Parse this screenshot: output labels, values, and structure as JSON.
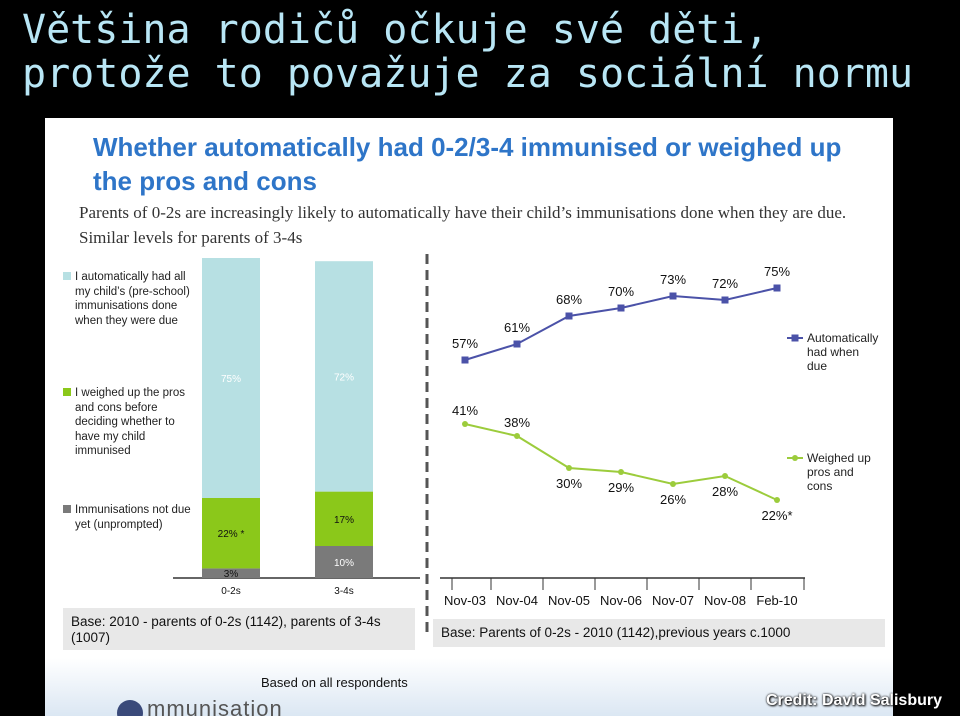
{
  "slide_title": {
    "line1": "Většina rodičů očkuje své děti,",
    "line2": "protože to považuje za sociální normu"
  },
  "credit": "Credit: David Salisbury",
  "chart_title": "Whether automatically had 0-2/3-4 immunised or weighed up the pros and cons",
  "chart_subtitle": "Parents of 0-2s are increasingly likely to automatically have their child’s immunisations done when they are due. Similar levels for parents of 3-4s",
  "legend_left": [
    {
      "label": "I automatically had all my child’s (pre-school) immunisations done when they were due",
      "color": "#b7e0e3"
    },
    {
      "label": "I weighed up the pros and cons before deciding whether to have my child immunised",
      "color": "#8bc81a"
    },
    {
      "label": "Immunisations not due yet (unprompted)",
      "color": "#7a7a7a"
    }
  ],
  "base_left": "Base: 2010 - parents of 0-2s (1142), parents of 3-4s (1007)",
  "base_right": "Base: Parents of 0-2s - 2010 (1142),previous years c.1000",
  "based_on_all": "Based on all respondents",
  "logo_text": "mmunisation",
  "chart_data": [
    {
      "type": "bar",
      "stacked": true,
      "categories": [
        "0-2s",
        "3-4s"
      ],
      "series": [
        {
          "name": "I automatically had all my child’s (pre-school) immunisations done when they were due",
          "values": [
            75,
            72
          ],
          "labels": [
            "75%",
            "72%"
          ],
          "color": "#b7e0e3"
        },
        {
          "name": "I weighed up the pros and cons before deciding whether to have my child immunised",
          "values": [
            22,
            17
          ],
          "labels": [
            "22% *",
            "17%"
          ],
          "color": "#8bc81a"
        },
        {
          "name": "Immunisations not due yet (unprompted)",
          "values": [
            3,
            10
          ],
          "labels": [
            "3%",
            "10%"
          ],
          "color": "#7a7a7a"
        }
      ],
      "ylim": [
        0,
        100
      ]
    },
    {
      "type": "line",
      "categories": [
        "Nov-03",
        "Nov-04",
        "Nov-05",
        "Nov-06",
        "Nov-07",
        "Nov-08",
        "Feb-10"
      ],
      "series": [
        {
          "name": "Automatically had when due",
          "values": [
            57,
            61,
            68,
            70,
            73,
            72,
            75
          ],
          "labels": [
            "57%",
            "61%",
            "68%",
            "70%",
            "73%",
            "72%",
            "75%"
          ],
          "color": "#4b52a8"
        },
        {
          "name": "Weighed up pros and cons",
          "values": [
            41,
            38,
            30,
            29,
            26,
            28,
            22
          ],
          "labels": [
            "41%",
            "38%",
            "30%",
            "29%",
            "26%",
            "28%",
            "22%*"
          ],
          "color": "#9ccc3c"
        }
      ]
    }
  ]
}
